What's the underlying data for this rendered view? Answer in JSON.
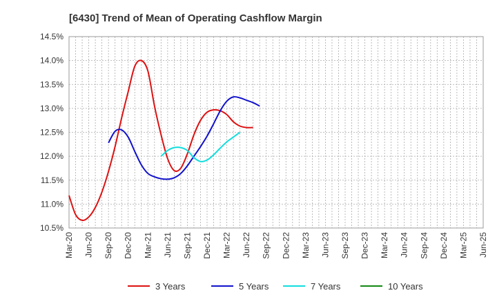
{
  "chart_data": {
    "type": "line",
    "title": "[6430]  Trend of Mean of Operating Cashflow Margin",
    "xlabel": "",
    "ylabel": "",
    "ylim": [
      10.5,
      14.5
    ],
    "yticks": [
      10.5,
      11.0,
      11.5,
      12.0,
      12.5,
      13.0,
      13.5,
      14.0,
      14.5
    ],
    "ytick_labels": [
      "10.5%",
      "11.0%",
      "11.5%",
      "12.0%",
      "12.5%",
      "13.0%",
      "13.5%",
      "14.0%",
      "14.5%"
    ],
    "x_labels": [
      "Mar-20",
      "Jun-20",
      "Sep-20",
      "Dec-20",
      "Mar-21",
      "Jun-21",
      "Sep-21",
      "Dec-21",
      "Mar-22",
      "Jun-22",
      "Sep-22",
      "Dec-22",
      "Mar-23",
      "Jun-23",
      "Sep-23",
      "Dec-23",
      "Mar-24",
      "Jun-24",
      "Sep-24",
      "Dec-24",
      "Mar-25",
      "Jun-25"
    ],
    "grid": true,
    "legend_position": "bottom",
    "series": [
      {
        "name": "3 Years",
        "color": "#dd1111",
        "start_index": 0,
        "values": [
          11.18,
          10.78,
          10.66,
          10.73,
          10.93,
          11.25,
          11.68,
          12.2,
          12.8,
          13.35,
          13.88,
          14.0,
          13.78,
          13.05,
          12.45,
          11.95,
          11.7,
          11.75,
          12.05,
          12.45,
          12.75,
          12.92,
          12.97,
          12.95,
          12.87,
          12.72,
          12.63,
          12.6,
          12.6
        ]
      },
      {
        "name": "5 Years",
        "color": "#1111cc",
        "start_index": 6,
        "values": [
          12.28,
          12.52,
          12.55,
          12.4,
          12.1,
          11.82,
          11.64,
          11.57,
          11.53,
          11.52,
          11.55,
          11.64,
          11.8,
          12.0,
          12.2,
          12.42,
          12.68,
          12.95,
          13.15,
          13.24,
          13.22,
          13.17,
          13.12,
          13.05
        ]
      },
      {
        "name": "7 Years",
        "color": "#11dddd",
        "start_index": 14,
        "values": [
          12.0,
          12.12,
          12.18,
          12.18,
          12.12,
          11.97,
          11.89,
          11.92,
          12.03,
          12.17,
          12.3,
          12.4,
          12.5
        ]
      },
      {
        "name": "10 Years",
        "color": "#118811",
        "start_index": 0,
        "values": []
      }
    ]
  }
}
